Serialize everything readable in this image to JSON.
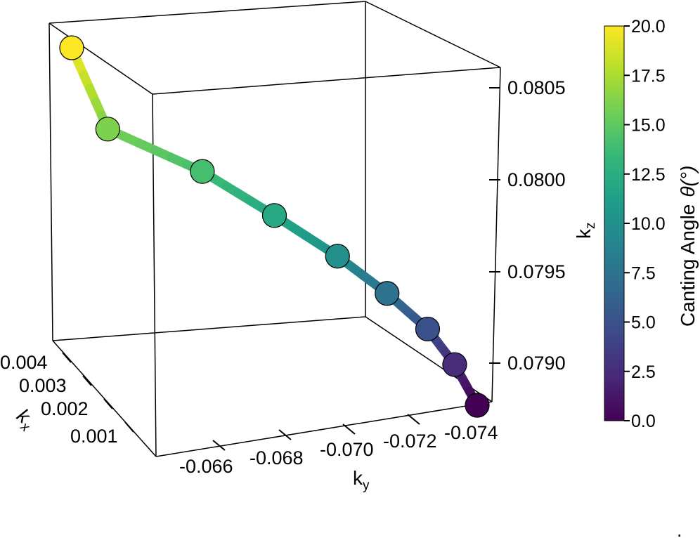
{
  "chart_data": {
    "type": "line3d-scatter",
    "axes": {
      "x": {
        "label": "k",
        "label_sub": "x",
        "ticks": [
          "0.004",
          "0.003",
          "0.002",
          "0.001"
        ],
        "range": [
          0.0005,
          0.0042
        ]
      },
      "y": {
        "label": "k",
        "label_sub": "y",
        "ticks": [
          "-0.066",
          "-0.068",
          "-0.070",
          "-0.072",
          "-0.074"
        ],
        "range": [
          -0.0652,
          -0.0742
        ]
      },
      "z": {
        "label": "k",
        "label_sub": "z",
        "ticks": [
          "0.0805",
          "0.0800",
          "0.0795",
          "0.0790"
        ],
        "range": [
          0.07873,
          0.08084
        ]
      }
    },
    "colorbar": {
      "label": "Canting Angle",
      "label_symbol": "θ(°)",
      "ticks": [
        "20.0",
        "17.5",
        "15.0",
        "12.5",
        "10.0",
        "7.5",
        "5.0",
        "2.5",
        "0.0"
      ],
      "range": [
        0,
        20
      ],
      "colormap": [
        "#fde725",
        "#b5de2b",
        "#6ece58",
        "#35b779",
        "#1f9e89",
        "#26828e",
        "#31688e",
        "#3e4989",
        "#482878",
        "#440154"
      ]
    },
    "points": [
      {
        "angle": 20.0,
        "ky": -0.0652,
        "kz": 0.08084
      },
      {
        "angle": 16.0,
        "ky": -0.066,
        "kz": 0.08036
      },
      {
        "angle": 14.0,
        "ky": -0.0681,
        "kz": 0.08011
      },
      {
        "angle": 12.0,
        "ky": -0.0697,
        "kz": 0.07985
      },
      {
        "angle": 10.0,
        "ky": -0.0711,
        "kz": 0.07961
      },
      {
        "angle": 7.5,
        "ky": -0.0722,
        "kz": 0.07939
      },
      {
        "angle": 5.0,
        "ky": -0.0731,
        "kz": 0.07918
      },
      {
        "angle": 2.5,
        "ky": -0.0737,
        "kz": 0.07897
      },
      {
        "angle": 0.0,
        "ky": -0.0742,
        "kz": 0.07873
      }
    ],
    "footnote": "."
  }
}
